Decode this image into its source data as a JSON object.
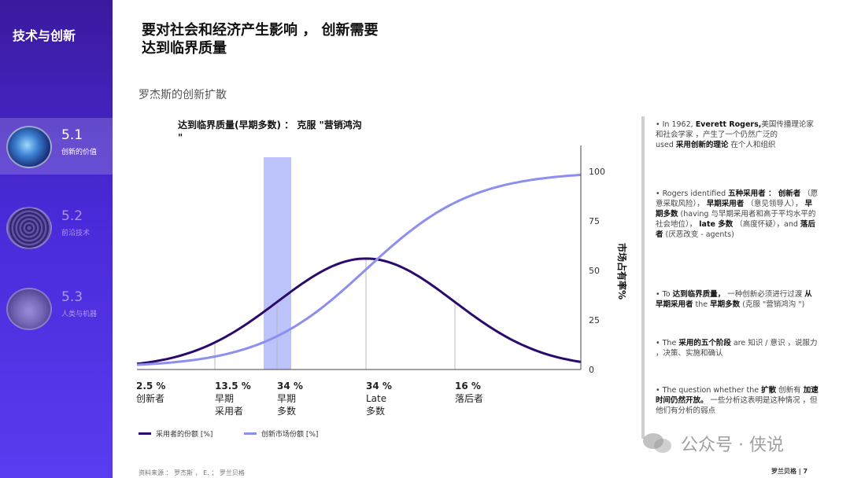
{
  "sidebar": {
    "title": "技术与创新",
    "items": [
      {
        "num": "5.1",
        "label": "创新的价值"
      },
      {
        "num": "5.2",
        "label": "前沿技术"
      },
      {
        "num": "5.3",
        "label": "人类与机器"
      }
    ]
  },
  "header": {
    "title_line1": "要对社会和经济产生影响 ， 创新需要",
    "title_line2": "达到临界质量",
    "subtitle": "罗杰斯的创新扩散"
  },
  "chart_heading": {
    "line1": "达到临界质量(早期多数) ： 克服 \"营销鸿沟",
    "line2": "\""
  },
  "chart_data": {
    "type": "line",
    "ylabel": "市场占有率%",
    "y_ticks": [
      "0",
      "25",
      "50",
      "75",
      "100"
    ],
    "ylim": [
      0,
      100
    ],
    "categories": [
      {
        "pct": "2.5 %",
        "name1": "创新者",
        "name2": ""
      },
      {
        "pct": "13.5 %",
        "name1": "早期",
        "name2": "采用者"
      },
      {
        "pct": "34 %",
        "name1": "早期",
        "name2": "多数"
      },
      {
        "pct": "34 %",
        "name1": "Late",
        "name2": "多数"
      },
      {
        "pct": "16 %",
        "name1": "落后者",
        "name2": ""
      }
    ],
    "series": [
      {
        "name": "采用者的份额 [%]",
        "color": "#2a0a6b",
        "kind": "bell"
      },
      {
        "name": "创新市场份额 [%]",
        "color": "#8c8ff0",
        "kind": "s-curve"
      }
    ],
    "highlight_band": "early majority",
    "highlight_color": "#bcc3fb"
  },
  "legend": {
    "adopters": "采用者的份额 [%]",
    "market": "创新市场份额 [%]"
  },
  "right_panel": {
    "b1": {
      "a": "• In 1962, ",
      "b": "Everett Rogers,",
      "c": "美国传播理论家和社会学家 ，产生了一个仍然广泛的",
      "d": "used ",
      "e": "采用创新的理论",
      "f": " 在个人和组织"
    },
    "b2": {
      "a": "• Rogers identified ",
      "b": "五种采用者 ： 创新者",
      "c": " （愿意采取风险）， ",
      "d": "早期采用者",
      "e": " （意见领导人）， ",
      "f": "早期多数",
      "g": " (having 与早期采用者和高于平均水平的社会地位）， ",
      "h": "late 多数",
      "i": " （高度怀疑），and ",
      "j": "落后者",
      "k": " (厌恶改变 - agents)"
    },
    "b3": {
      "a": "• To ",
      "b": "达到临界质量，",
      "c": " 一种创新必须进行过渡 ",
      "d": "从早期采用者",
      "e": " the ",
      "f": "早期多数",
      "g": " (克服 \"营销鸿沟 \")"
    },
    "b4": {
      "a": "• The ",
      "b": "采用的五个阶段",
      "c": " are 知识 / 意识 ，说服力 ，决策、实施和确认"
    },
    "b5": {
      "a": "• The question whether the ",
      "b": "扩散",
      "c": " 创新有 ",
      "d": "加速",
      "e": " ",
      "f": "时间仍然开放。",
      "g": " 一些分析这表明是这种情况 ，但他们有分析的弱点"
    }
  },
  "footer": {
    "source": "资料来源 ： 罗杰斯 ， E. ； 罗兰贝格",
    "page": "罗兰贝格 | 7"
  },
  "watermark": "公众号 · 侠说"
}
